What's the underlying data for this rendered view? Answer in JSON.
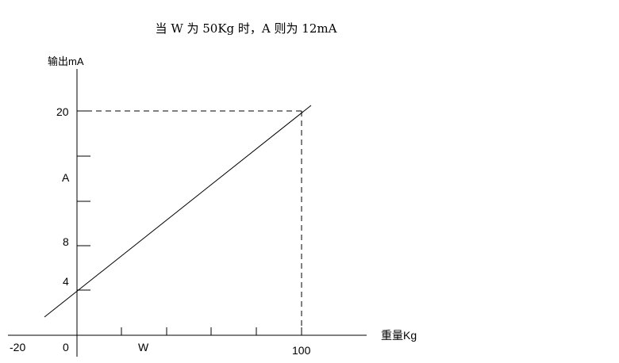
{
  "caption": "当 W 为 50Kg 时，A 则为 12mA",
  "y_axis": {
    "label": "输出mA",
    "tick_labels": {
      "t20": "20",
      "tA": "A",
      "t8": "8",
      "t4": "4"
    }
  },
  "x_axis": {
    "label": "重量Kg",
    "tick_labels": {
      "tm20": "-20",
      "t0": "0",
      "tW": "W",
      "t100": "100"
    }
  },
  "relationship": {
    "type": "line",
    "points": [
      [
        0,
        4
      ],
      [
        100,
        20
      ]
    ]
  },
  "colors": {
    "line": "#000000",
    "text": "#000000",
    "background": "#ffffff"
  }
}
